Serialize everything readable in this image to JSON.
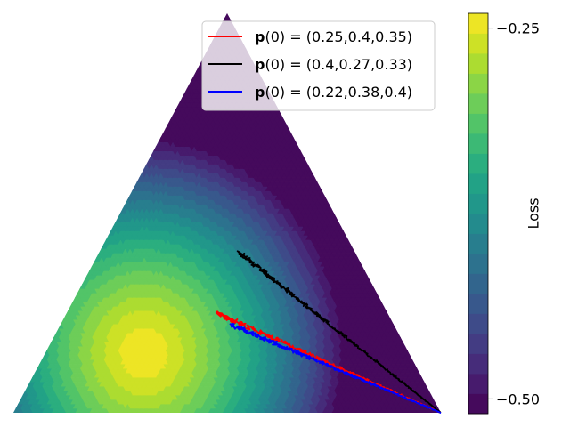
{
  "chart_data": {
    "type": "ternary-contour",
    "colormap": "viridis",
    "contour_levels": 20,
    "colorbar": {
      "label": "Loss",
      "range": [
        -0.51,
        -0.24
      ],
      "ticks": [
        {
          "value": -0.25,
          "label": "−0.25"
        },
        {
          "value": -0.5,
          "label": "−0.50"
        }
      ]
    },
    "peak": {
      "p1": 0.15,
      "p2": 0.62,
      "p3": 0.23,
      "loss": -0.24
    },
    "end_point": {
      "p1": 0.0,
      "p2": 0.0,
      "p3": 1.0
    },
    "legend_placement": "top-right",
    "series": [
      {
        "name_bold": "p",
        "name_rest": "(0) = (0.25,0.4,0.35)",
        "color": "#ff0000",
        "start": {
          "p1": 0.25,
          "p2": 0.4,
          "p3": 0.35
        }
      },
      {
        "name_bold": "p",
        "name_rest": "(0) = (0.4,0.27,0.33)",
        "color": "#000000",
        "start": {
          "p1": 0.4,
          "p2": 0.27,
          "p3": 0.33
        }
      },
      {
        "name_bold": "p",
        "name_rest": "(0) = (0.22,0.38,0.4)",
        "color": "#0000ff",
        "start": {
          "p1": 0.22,
          "p2": 0.38,
          "p3": 0.4
        }
      }
    ]
  }
}
